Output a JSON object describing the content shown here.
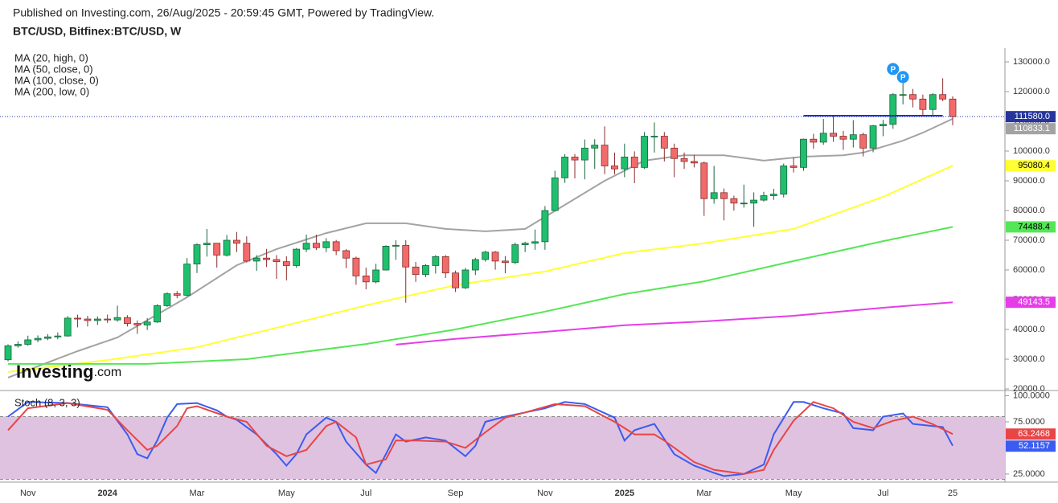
{
  "header": {
    "published": "Published on Investing.com, 26/Aug/2025 - 20:59:45 GMT, Powered by TradingView.",
    "symbol": "BTC/USD, Bitfinex:BTC/USD, W"
  },
  "watermark": [
    "Investing",
    ".com"
  ],
  "chart_data": [
    {
      "type": "candlestick",
      "categories": [
        null,
        null,
        "Nov",
        null,
        null,
        null,
        null,
        null,
        null,
        null,
        "2024",
        null,
        null,
        null,
        null,
        null,
        null,
        null,
        null,
        "Mar",
        null,
        null,
        null,
        null,
        null,
        null,
        null,
        null,
        "May",
        null,
        null,
        null,
        null,
        null,
        null,
        null,
        "Jul",
        null,
        null,
        null,
        null,
        null,
        null,
        null,
        null,
        "Sep",
        null,
        null,
        null,
        null,
        null,
        null,
        null,
        null,
        "Nov",
        null,
        null,
        null,
        null,
        null,
        null,
        null,
        "2025",
        null,
        null,
        null,
        null,
        null,
        null,
        null,
        "Mar",
        null,
        null,
        null,
        null,
        null,
        null,
        null,
        null,
        "May",
        null,
        null,
        null,
        null,
        null,
        null,
        null,
        null,
        "Jul",
        null,
        null,
        null,
        null,
        null,
        null,
        "25"
      ],
      "open": [
        29800,
        34500,
        35000,
        36500,
        37000,
        37500,
        37800,
        43800,
        43500,
        43000,
        43500,
        43200,
        44000,
        42000,
        41500,
        42500,
        48000,
        52000,
        51500,
        62000,
        68500,
        69000,
        65000,
        70000,
        69000,
        63000,
        64000,
        63500,
        62800,
        61500,
        67000,
        69000,
        67500,
        69500,
        66500,
        64000,
        58000,
        56000,
        60000,
        68000,
        68300,
        61000,
        58500,
        61500,
        64500,
        59000,
        54000,
        60000,
        63500,
        66000,
        63000,
        62500,
        68500,
        69000,
        69500,
        80000,
        91000,
        98000,
        97000,
        101000,
        102000,
        95000,
        94000,
        98000,
        94500,
        105000,
        105000,
        101000,
        97500,
        96500,
        96000,
        84000,
        86000,
        84000,
        82500,
        82500,
        83500,
        85000,
        85500,
        95000,
        94500,
        104000,
        103000,
        106000,
        105000,
        104000,
        105500,
        101000,
        108500,
        109000,
        119000,
        119000,
        117500,
        114000,
        119000,
        117500
      ],
      "high": [
        35000,
        36000,
        37900,
        38000,
        38400,
        39000,
        44500,
        45000,
        44600,
        44400,
        45000,
        48000,
        44800,
        43000,
        43800,
        48500,
        52500,
        52900,
        64000,
        69000,
        73800,
        69000,
        71800,
        72800,
        71300,
        65000,
        67100,
        65000,
        64600,
        67400,
        71900,
        71900,
        70700,
        70100,
        67000,
        64500,
        60800,
        62100,
        68300,
        70000,
        70000,
        62700,
        62000,
        65000,
        65000,
        59800,
        60700,
        64100,
        66500,
        66400,
        64700,
        69200,
        69500,
        73600,
        81500,
        93400,
        99000,
        99000,
        103900,
        104000,
        108300,
        99500,
        102500,
        99900,
        106400,
        109600,
        106400,
        102500,
        99500,
        98700,
        96500,
        95000,
        87400,
        85000,
        88700,
        86100,
        86300,
        87300,
        95800,
        97800,
        104200,
        105800,
        110800,
        111900,
        106800,
        110400,
        106200,
        108800,
        110500,
        119500,
        123200,
        120900,
        119000,
        119500,
        124500,
        118400
      ],
      "low": [
        29300,
        33900,
        34500,
        35700,
        36400,
        36700,
        37600,
        40700,
        41000,
        41500,
        42200,
        42600,
        41000,
        38500,
        39800,
        42200,
        47600,
        50500,
        51000,
        59000,
        64500,
        60800,
        64500,
        66000,
        62500,
        59700,
        61000,
        57000,
        56500,
        60800,
        66000,
        66700,
        66000,
        65000,
        60600,
        55000,
        53500,
        55500,
        59800,
        63400,
        49000,
        56000,
        57600,
        58800,
        57300,
        52600,
        53600,
        58300,
        62800,
        60100,
        58900,
        62000,
        66000,
        66800,
        66800,
        79800,
        89300,
        90800,
        90500,
        94000,
        92200,
        92200,
        91200,
        89200,
        94000,
        99500,
        96500,
        91200,
        94000,
        94500,
        78200,
        82300,
        76700,
        80000,
        81000,
        74500,
        83000,
        83600,
        84400,
        92800,
        93400,
        100800,
        102100,
        103100,
        100400,
        101200,
        98200,
        99600,
        105000,
        107500,
        115700,
        114700,
        111900,
        112000,
        116800,
        108700
      ],
      "close": [
        34500,
        35000,
        36500,
        37000,
        37500,
        37800,
        43800,
        43500,
        43000,
        43500,
        43200,
        44000,
        42000,
        41500,
        42500,
        48000,
        52000,
        51500,
        62000,
        68500,
        69000,
        65000,
        70000,
        69000,
        63000,
        64000,
        63500,
        62800,
        61500,
        67000,
        69000,
        67500,
        69500,
        66500,
        64000,
        58000,
        56000,
        60000,
        68000,
        68300,
        61000,
        58500,
        61500,
        64500,
        59000,
        54000,
        60000,
        63500,
        66000,
        63000,
        62500,
        68500,
        69000,
        69500,
        80000,
        91000,
        98000,
        97000,
        101000,
        102000,
        95000,
        94000,
        98000,
        94500,
        105000,
        105000,
        101000,
        97500,
        96500,
        96000,
        84000,
        86000,
        84000,
        82500,
        82500,
        83500,
        85000,
        85500,
        95000,
        94500,
        104000,
        103000,
        106000,
        105000,
        104000,
        105500,
        101000,
        108500,
        109000,
        119000,
        119000,
        117500,
        114000,
        119000,
        117500,
        111580
      ],
      "up_color": "#1fbf6e",
      "down_color": "#f26b6b",
      "up_border": "#17653c",
      "down_border": "#8a2c2c",
      "last_price_label": "111580.0",
      "price_line_color": "#26359c",
      "series": [
        {
          "name": "MA (20, high, 0)",
          "color": "#a3a3a3",
          "text_color": "#ffffff",
          "x": [
            0,
            7,
            11,
            18,
            23,
            27,
            32,
            36,
            40,
            44,
            48,
            52,
            56,
            60,
            64,
            68,
            72,
            76,
            80,
            84,
            86,
            90,
            92,
            95
          ],
          "values": [
            23800,
            32700,
            37300,
            50800,
            61600,
            67000,
            72400,
            75700,
            75700,
            73800,
            73000,
            73800,
            81900,
            90000,
            96800,
            98600,
            98600,
            96800,
            98100,
            98600,
            99500,
            103500,
            106200,
            110833.1
          ]
        },
        {
          "name": "MA (50, close, 0)",
          "color": "#ffff33",
          "text_color": "#000000",
          "x": [
            0,
            10,
            19,
            28,
            36,
            45,
            54,
            62,
            70,
            79,
            88,
            95
          ],
          "values": [
            25700,
            29700,
            34000,
            41400,
            48100,
            54900,
            59500,
            65700,
            69000,
            73800,
            84600,
            95080.4
          ]
        },
        {
          "name": "MA (100, close, 0)",
          "color": "#55e655",
          "text_color": "#000000",
          "x": [
            0,
            14,
            24,
            36,
            45,
            54,
            62,
            70,
            79,
            88,
            95
          ],
          "values": [
            28400,
            28400,
            30000,
            35100,
            40000,
            46000,
            51900,
            56200,
            63000,
            69700,
            74488.4
          ]
        },
        {
          "name": "MA (200, low, 0)",
          "color": "#e53ee8",
          "text_color": "#ffffff",
          "x": [
            39,
            45,
            54,
            62,
            70,
            79,
            88,
            95
          ],
          "values": [
            34900,
            36800,
            39200,
            41400,
            42700,
            44600,
            47300,
            49143.5
          ]
        }
      ],
      "level_line": {
        "x": [
          80,
          94
        ],
        "value": 111900,
        "color": "#1b2fd8"
      },
      "markers": [
        {
          "label": "P",
          "x": 89,
          "value": 127600
        },
        {
          "label": "P",
          "x": 90,
          "value": 124900
        }
      ],
      "marker_color": "#2196f3",
      "ylim": [
        20000,
        134600
      ],
      "yticks": [
        {
          "value": 20000,
          "label": "20000.0"
        },
        {
          "value": 30000,
          "label": "30000.0"
        },
        {
          "value": 40000,
          "label": "40000.0"
        },
        {
          "value": 50000,
          "label": "50000.0"
        },
        {
          "value": 60000,
          "label": "60000.0"
        },
        {
          "value": 70000,
          "label": "70000.0"
        },
        {
          "value": 80000,
          "label": "80000.0"
        },
        {
          "value": 90000,
          "label": "90000.0"
        },
        {
          "value": 100000,
          "label": "100000.0"
        },
        {
          "value": 110000,
          "label": "110000.0"
        },
        {
          "value": 120000,
          "label": "120000.0"
        },
        {
          "value": 130000,
          "label": "130000.0"
        }
      ]
    },
    {
      "type": "line",
      "title": "Stoch (8, 3, 3)",
      "series": [
        {
          "color": "#3b5cf0",
          "x": [
            0,
            2,
            6,
            10,
            12,
            13,
            14,
            15,
            16,
            17,
            19,
            21,
            22,
            23,
            25,
            27,
            28,
            29,
            30,
            32,
            33,
            34,
            36,
            37,
            38,
            39,
            40,
            42,
            44,
            46,
            47,
            48,
            50,
            52,
            54,
            56,
            58,
            61,
            62,
            63,
            65,
            67,
            69,
            71,
            72,
            74,
            76,
            77,
            79,
            80,
            82,
            84,
            85,
            87,
            88,
            90,
            91,
            93,
            94,
            95
          ],
          "values": [
            80,
            94,
            93,
            89,
            63,
            44,
            40,
            57,
            79,
            92,
            93,
            86,
            80,
            77,
            63,
            44,
            33,
            44,
            63,
            79,
            75,
            56,
            34,
            26,
            44,
            63,
            56,
            60,
            57,
            42,
            52,
            75,
            80,
            84,
            88,
            94,
            92,
            79,
            57,
            67,
            73,
            44,
            33,
            26,
            23,
            25,
            34,
            63,
            94,
            94,
            88,
            83,
            69,
            67,
            80,
            83,
            73,
            71,
            70,
            52.1157
          ]
        },
        {
          "color": "#e84545",
          "x": [
            0,
            2,
            6,
            10,
            12,
            14,
            15,
            17,
            18,
            19,
            22,
            24,
            26,
            28,
            30,
            32,
            33,
            35,
            36,
            38,
            39,
            41,
            44,
            46,
            48,
            50,
            52,
            55,
            58,
            61,
            63,
            65,
            66,
            69,
            71,
            74,
            76,
            77,
            79,
            81,
            83,
            85,
            87,
            89,
            91,
            93,
            95
          ],
          "values": [
            67,
            88,
            93,
            86.5,
            67,
            48,
            52,
            71,
            88,
            90,
            80,
            75,
            52,
            42,
            48,
            71,
            75,
            60,
            34,
            39,
            57,
            57,
            56,
            50,
            65,
            79,
            84,
            92,
            90,
            75,
            63,
            63,
            57,
            36.5,
            29,
            25,
            29,
            48,
            76,
            94,
            88,
            75,
            69,
            76,
            80,
            72.7,
            63.2468
          ]
        }
      ],
      "band": [
        20,
        80
      ],
      "band_color": "#dfc2e0",
      "ylim": [
        18.8,
        104.2
      ],
      "yticks": [
        {
          "value": 100,
          "label": "100.0000"
        },
        {
          "value": 75,
          "label": "75.0000"
        },
        {
          "value": 25,
          "label": "25.0000"
        }
      ]
    }
  ]
}
